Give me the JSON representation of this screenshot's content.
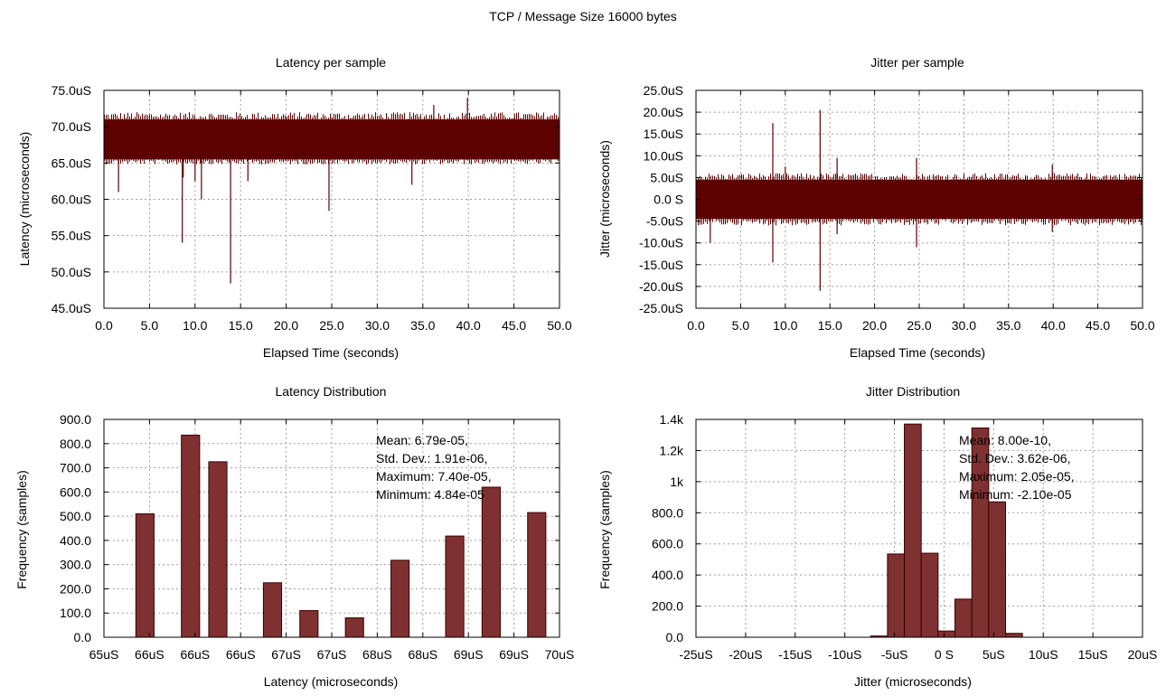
{
  "page_title": "TCP / Message Size 16000 bytes",
  "colors": {
    "trace": "#5c0000",
    "bar_fill": "#7f3030",
    "bar_stroke": "#3a0000",
    "grid": "#a0a0a0"
  },
  "chart_data": [
    {
      "type": "line",
      "title": "Latency per sample",
      "xlabel": "Elapsed Time (seconds)",
      "ylabel": "Latency (microseconds)",
      "xlim": [
        0,
        50
      ],
      "ylim": [
        45,
        75
      ],
      "grid": true,
      "x_ticks": [
        0,
        5,
        10,
        15,
        20,
        25,
        30,
        35,
        40,
        45,
        50
      ],
      "x_tick_labels": [
        "0.0",
        "5.0",
        "10.0",
        "15.0",
        "20.0",
        "25.0",
        "30.0",
        "35.0",
        "40.0",
        "45.0",
        "50.0"
      ],
      "y_ticks": [
        45,
        50,
        55,
        60,
        65,
        70,
        75
      ],
      "y_tick_labels": [
        "45.0uS",
        "50.0uS",
        "55.0uS",
        "60.0uS",
        "65.0uS",
        "70.0uS",
        "75.0uS"
      ],
      "series": [
        {
          "band": [
            65.5,
            71.0
          ],
          "band_peaks": [
            64.8,
            72.0
          ],
          "spikes": [
            {
              "x": 1.6,
              "y": 61.0
            },
            {
              "x": 1.6,
              "y": 67.0
            },
            {
              "x": 8.6,
              "y": 54.0
            },
            {
              "x": 8.7,
              "y": 63.0
            },
            {
              "x": 10.0,
              "y": 62.5
            },
            {
              "x": 10.7,
              "y": 60.0
            },
            {
              "x": 13.9,
              "y": 48.4
            },
            {
              "x": 15.8,
              "y": 62.5
            },
            {
              "x": 24.7,
              "y": 58.4
            },
            {
              "x": 33.8,
              "y": 62.0
            },
            {
              "x": 36.2,
              "y": 73.0
            },
            {
              "x": 39.9,
              "y": 74.0
            }
          ]
        }
      ]
    },
    {
      "type": "line",
      "title": "Jitter per sample",
      "xlabel": "Elapsed Time (seconds)",
      "ylabel": "Jitter (microseconds)",
      "xlim": [
        0,
        50
      ],
      "ylim": [
        -25,
        25
      ],
      "grid": true,
      "x_ticks": [
        0,
        5,
        10,
        15,
        20,
        25,
        30,
        35,
        40,
        45,
        50
      ],
      "x_tick_labels": [
        "0.0",
        "5.0",
        "10.0",
        "15.0",
        "20.0",
        "25.0",
        "30.0",
        "35.0",
        "40.0",
        "45.0",
        "50.0"
      ],
      "y_ticks": [
        -25,
        -20,
        -15,
        -10,
        -5,
        0,
        5,
        10,
        15,
        20,
        25
      ],
      "y_tick_labels": [
        "-25.0uS",
        "-20.0uS",
        "-15.0uS",
        "-10.0uS",
        "-5.0uS",
        "0.0 S",
        "5.0uS",
        "10.0uS",
        "15.0uS",
        "20.0uS",
        "25.0uS"
      ],
      "series": [
        {
          "band": [
            -4.5,
            4.5
          ],
          "band_peaks": [
            -6.0,
            6.0
          ],
          "spikes": [
            {
              "x": 1.6,
              "y": -10.0
            },
            {
              "x": 8.6,
              "y": 17.5
            },
            {
              "x": 8.6,
              "y": -14.5
            },
            {
              "x": 10.0,
              "y": 7.5
            },
            {
              "x": 13.9,
              "y": 20.5
            },
            {
              "x": 13.9,
              "y": -21.0
            },
            {
              "x": 15.8,
              "y": 9.5
            },
            {
              "x": 15.8,
              "y": -8.0
            },
            {
              "x": 24.7,
              "y": 9.5
            },
            {
              "x": 24.7,
              "y": -11.0
            },
            {
              "x": 39.9,
              "y": 8.0
            },
            {
              "x": 39.9,
              "y": -7.5
            }
          ]
        }
      ]
    },
    {
      "type": "bar",
      "title": "Latency Distribution",
      "xlabel": "Latency (microseconds)",
      "ylabel": "Frequency (samples)",
      "xlim": [
        65,
        70
      ],
      "ylim": [
        0,
        900
      ],
      "grid": true,
      "x_ticks": [
        65,
        65.5,
        66,
        66.5,
        67,
        67.5,
        68,
        68.5,
        69,
        69.5,
        70
      ],
      "x_tick_labels": [
        "65uS",
        "66uS",
        "66uS",
        "66uS",
        "67uS",
        "67uS",
        "68uS",
        "68uS",
        "69uS",
        "69uS",
        "70uS"
      ],
      "y_ticks": [
        0,
        100,
        200,
        300,
        400,
        500,
        600,
        700,
        800,
        900
      ],
      "y_tick_labels": [
        "0.0",
        "100.0",
        "200.0",
        "300.0",
        "400.0",
        "500.0",
        "600.0",
        "700.0",
        "800.0",
        "900.0"
      ],
      "bar_width": 0.2,
      "x": [
        65.45,
        65.95,
        66.25,
        66.85,
        67.25,
        67.75,
        68.25,
        68.85,
        69.25,
        69.75
      ],
      "values": [
        510,
        835,
        725,
        225,
        110,
        80,
        318,
        418,
        620,
        515
      ],
      "stats": [
        "Mean: 6.79e-05,",
        "Std. Dev.: 1.91e-06,",
        "Maximum: 7.40e-05,",
        "Minimum: 4.84e-05"
      ]
    },
    {
      "type": "bar",
      "title": "Jitter Distribution",
      "xlabel": "Jitter (microseconds)",
      "ylabel": "Frequency (samples)",
      "xlim": [
        -25,
        20
      ],
      "ylim": [
        0,
        1400
      ],
      "grid": true,
      "x_ticks": [
        -25,
        -20,
        -15,
        -10,
        -5,
        0,
        5,
        10,
        15,
        20
      ],
      "x_tick_labels": [
        "-25uS",
        "-20uS",
        "-15uS",
        "-10uS",
        "-5uS",
        "0 S",
        "5uS",
        "10uS",
        "15uS",
        "20uS"
      ],
      "y_ticks": [
        0,
        200,
        400,
        600,
        800,
        1000,
        1200,
        1400
      ],
      "y_tick_labels": [
        "0.0",
        "200.0",
        "400.0",
        "600.0",
        "800.0",
        "1k",
        "1.2k",
        "1.4k"
      ],
      "bar_width": 1.7,
      "x": [
        -6.55,
        -4.85,
        -3.15,
        -1.45,
        0.25,
        1.95,
        3.65,
        5.35,
        7.05
      ],
      "values": [
        8,
        535,
        1370,
        540,
        40,
        245,
        1345,
        870,
        25
      ],
      "stats": [
        "Mean: 8.00e-10,",
        "Std. Dev.: 3.62e-06,",
        "Maximum: 2.05e-05,",
        "Minimum: -2.10e-05"
      ]
    }
  ]
}
